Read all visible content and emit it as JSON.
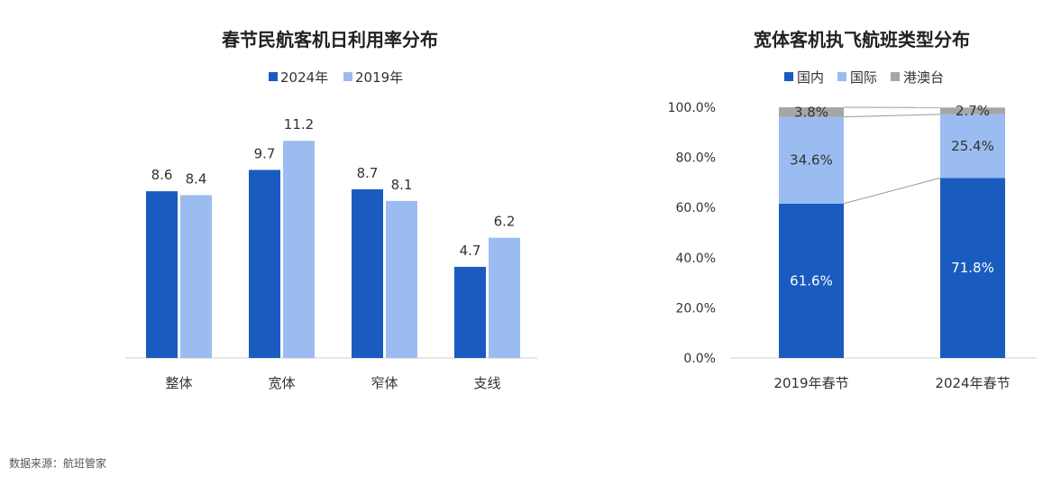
{
  "source": "数据来源：航班管家",
  "colors": {
    "dark_blue": "#1a5bbf",
    "light_blue": "#9bbcf0",
    "gray": "#a6a6a6",
    "axis": "#cfcfcf",
    "connector": "#9a9a9a"
  },
  "chart_data": [
    {
      "type": "bar",
      "title": "春节民航客机日利用率分布",
      "legend_position": "top",
      "categories": [
        "整体",
        "宽体",
        "窄体",
        "支线"
      ],
      "series": [
        {
          "name": "2024年",
          "values": [
            8.6,
            9.7,
            8.7,
            4.7
          ],
          "color": "#1a5bbf"
        },
        {
          "name": "2019年",
          "values": [
            8.4,
            11.2,
            8.1,
            6.2
          ],
          "color": "#9bbcf0"
        }
      ],
      "ylim": [
        0,
        12.5
      ],
      "grid": false
    },
    {
      "type": "bar",
      "stacked": true,
      "title": "宽体客机执飞航班类型分布",
      "legend_position": "top",
      "categories": [
        "2019年春节",
        "2024年春节"
      ],
      "series": [
        {
          "name": "国内",
          "values": [
            61.6,
            71.8
          ],
          "labels": [
            "61.6%",
            "71.8%"
          ],
          "color": "#1a5bbf"
        },
        {
          "name": "国际",
          "values": [
            34.6,
            25.4
          ],
          "labels": [
            "34.6%",
            "25.4%"
          ],
          "color": "#9bbcf0"
        },
        {
          "name": "港澳台",
          "values": [
            3.8,
            2.7
          ],
          "labels": [
            "3.8%",
            "2.7%"
          ],
          "color": "#a6a6a6"
        }
      ],
      "ylim": [
        0,
        100
      ],
      "yticks": [
        "0.0%",
        "20.0%",
        "40.0%",
        "60.0%",
        "80.0%",
        "100.0%"
      ],
      "grid": false
    }
  ]
}
